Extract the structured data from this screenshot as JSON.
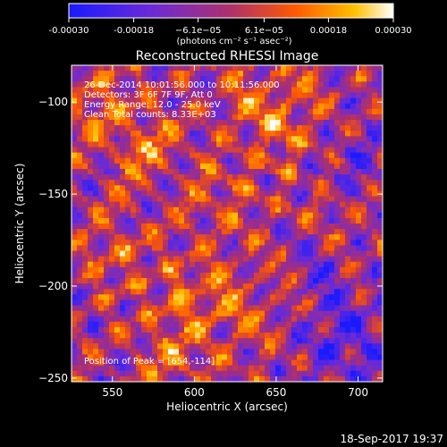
{
  "colorbar": {
    "ticks": [
      "-0.00030",
      "-0.00018",
      "−6.1e−05",
      "6.1e−05",
      "0.00018",
      "0.00030"
    ],
    "tick_values": [
      -0.0003,
      -0.00018,
      -6.1e-05,
      6.1e-05,
      0.00018,
      0.0003
    ],
    "range": [
      -0.0003,
      0.0003
    ],
    "units": "(photons cm⁻² s⁻¹ asec⁻²)",
    "colormap": [
      "#1a1aff",
      "#6a2ad8",
      "#b0306a",
      "#ff5a00",
      "#ffc000",
      "#ffffff"
    ]
  },
  "chart_data": {
    "type": "heatmap",
    "title": "Reconstructed RHESSI Image",
    "xlabel": "Heliocentric X (arcsec)",
    "ylabel": "Heliocentric Y (arcsec)",
    "xlim": [
      525,
      715
    ],
    "ylim": [
      -252,
      -80
    ],
    "xticks": [
      550,
      600,
      650,
      700
    ],
    "yticks": [
      -100,
      -150,
      -200,
      -250
    ],
    "xtick_labels": [
      "550",
      "600",
      "650",
      "700"
    ],
    "ytick_labels": [
      "−100",
      "−150",
      "−200",
      "−250"
    ],
    "annotations": {
      "time": "26-Dec-2014 10:01:56.000 to 10:11:56.000",
      "detectors": "Detectors: 3F 6F 7F 9F, Att 0",
      "energy": "Energy Range: 12.0 - 25.0 keV",
      "clean": "Clean    Total counts: 8.33E+03",
      "peak": "Position of Peak = [654,-114]"
    },
    "peak": {
      "x": 654,
      "y": -114
    },
    "grid": false
  },
  "footer": {
    "timestamp": "18-Sep-2017 19:37"
  }
}
